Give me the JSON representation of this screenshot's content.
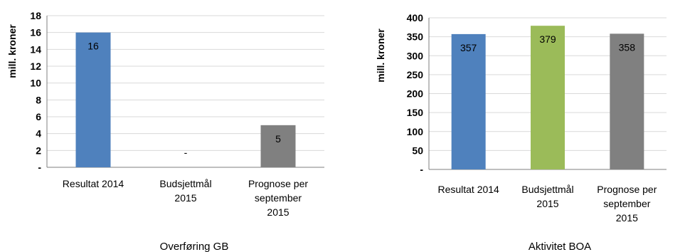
{
  "chart_data": [
    {
      "type": "bar",
      "title": "Overføring GB",
      "ylabel": "mill. kroner",
      "xlabel": "",
      "ylim": [
        0,
        18
      ],
      "y_ticks": [
        "-",
        "2",
        "4",
        "6",
        "8",
        "10",
        "12",
        "14",
        "16",
        "18"
      ],
      "grid": true,
      "categories": [
        [
          "Resultat 2014"
        ],
        [
          "Budsjettmål",
          "2015"
        ],
        [
          "Prognose per",
          "september",
          "2015"
        ]
      ],
      "values": [
        16,
        0,
        5
      ],
      "data_labels": [
        "16",
        "-",
        "5"
      ],
      "colors": [
        "#4f81bd",
        "#9bbb59",
        "#808080"
      ]
    },
    {
      "type": "bar",
      "title": "Aktivitet BOA",
      "ylabel": "mill. kroner",
      "xlabel": "",
      "ylim": [
        0,
        400
      ],
      "y_ticks": [
        "-",
        "50",
        "100",
        "150",
        "200",
        "250",
        "300",
        "350",
        "400"
      ],
      "grid": true,
      "categories": [
        [
          "Resultat 2014"
        ],
        [
          "Budsjettmål",
          "2015"
        ],
        [
          "Prognose per",
          "september",
          "2015"
        ]
      ],
      "values": [
        357,
        379,
        358
      ],
      "data_labels": [
        "357",
        "379",
        "358"
      ],
      "colors": [
        "#4f81bd",
        "#9bbb59",
        "#808080"
      ]
    }
  ]
}
